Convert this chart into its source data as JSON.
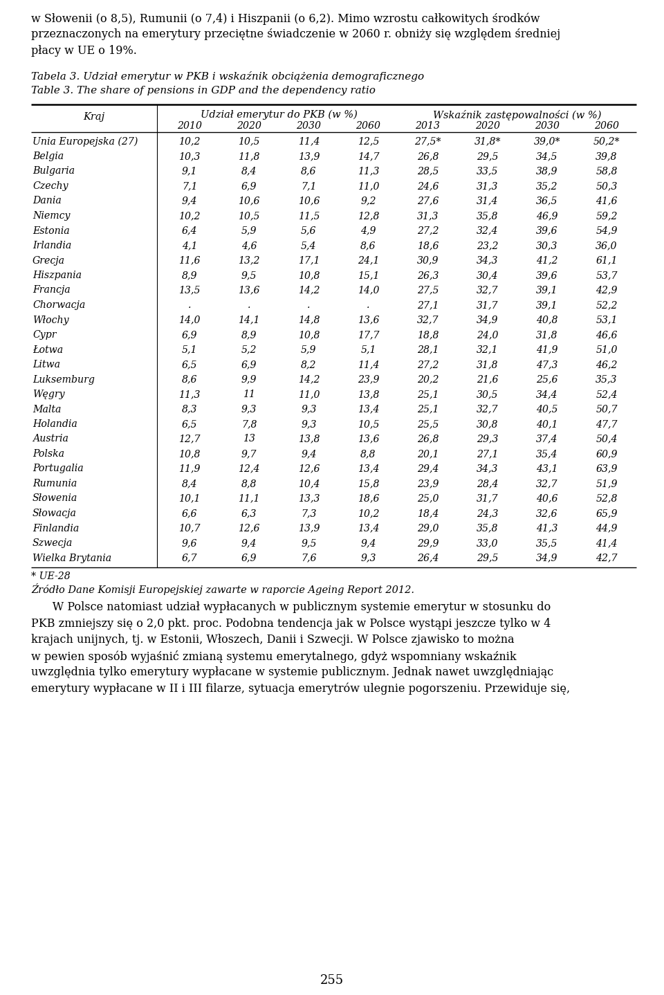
{
  "intro_text_lines": [
    "w Słowenii (o 8,5), Rumunii (o 7,4) i Hiszpanii (o 6,2). Mimo wzrostu całkowitych środków",
    "przeznaczonych na emerytury przeciętne świadczenie w 2060 r. obniży się względem średniej",
    "płacy w UE o 19%."
  ],
  "tabela_label": "Tabela 3. Udział emerytur w PKB i wskaźnik obciążenia demograficznego",
  "table_label": "Table 3. The share of pensions in GDP and the dependency ratio",
  "col_header_kraj": "Kraj",
  "col_group1": "Udział emerytur do PKB (w %)",
  "col_group2": "Wskaźnik zastępowalności (w %)",
  "col_years1": [
    "2010",
    "2020",
    "2030",
    "2060"
  ],
  "col_years2": [
    "2013",
    "2020",
    "2030",
    "2060"
  ],
  "rows": [
    [
      "Unia Europejska (27)",
      "10,2",
      "10,5",
      "11,4",
      "12,5",
      "27,5*",
      "31,8*",
      "39,0*",
      "50,2*"
    ],
    [
      "Belgia",
      "10,3",
      "11,8",
      "13,9",
      "14,7",
      "26,8",
      "29,5",
      "34,5",
      "39,8"
    ],
    [
      "Bulgaria",
      "9,1",
      "8,4",
      "8,6",
      "11,3",
      "28,5",
      "33,5",
      "38,9",
      "58,8"
    ],
    [
      "Czechy",
      "7,1",
      "6,9",
      "7,1",
      "11,0",
      "24,6",
      "31,3",
      "35,2",
      "50,3"
    ],
    [
      "Dania",
      "9,4",
      "10,6",
      "10,6",
      "9,2",
      "27,6",
      "31,4",
      "36,5",
      "41,6"
    ],
    [
      "Niemcy",
      "10,2",
      "10,5",
      "11,5",
      "12,8",
      "31,3",
      "35,8",
      "46,9",
      "59,2"
    ],
    [
      "Estonia",
      "6,4",
      "5,9",
      "5,6",
      "4,9",
      "27,2",
      "32,4",
      "39,6",
      "54,9"
    ],
    [
      "Irlandia",
      "4,1",
      "4,6",
      "5,4",
      "8,6",
      "18,6",
      "23,2",
      "30,3",
      "36,0"
    ],
    [
      "Grecja",
      "11,6",
      "13,2",
      "17,1",
      "24,1",
      "30,9",
      "34,3",
      "41,2",
      "61,1"
    ],
    [
      "Hiszpania",
      "8,9",
      "9,5",
      "10,8",
      "15,1",
      "26,3",
      "30,4",
      "39,6",
      "53,7"
    ],
    [
      "Francja",
      "13,5",
      "13,6",
      "14,2",
      "14,0",
      "27,5",
      "32,7",
      "39,1",
      "42,9"
    ],
    [
      "Chorwacja",
      ".",
      ".",
      ".",
      ".",
      "27,1",
      "31,7",
      "39,1",
      "52,2"
    ],
    [
      "Włochy",
      "14,0",
      "14,1",
      "14,8",
      "13,6",
      "32,7",
      "34,9",
      "40,8",
      "53,1"
    ],
    [
      "Cypr",
      "6,9",
      "8,9",
      "10,8",
      "17,7",
      "18,8",
      "24,0",
      "31,8",
      "46,6"
    ],
    [
      "Łotwa",
      "5,1",
      "5,2",
      "5,9",
      "5,1",
      "28,1",
      "32,1",
      "41,9",
      "51,0"
    ],
    [
      "Litwa",
      "6,5",
      "6,9",
      "8,2",
      "11,4",
      "27,2",
      "31,8",
      "47,3",
      "46,2"
    ],
    [
      "Luksemburg",
      "8,6",
      "9,9",
      "14,2",
      "23,9",
      "20,2",
      "21,6",
      "25,6",
      "35,3"
    ],
    [
      "Węgry",
      "11,3",
      "11",
      "11,0",
      "13,8",
      "25,1",
      "30,5",
      "34,4",
      "52,4"
    ],
    [
      "Malta",
      "8,3",
      "9,3",
      "9,3",
      "13,4",
      "25,1",
      "32,7",
      "40,5",
      "50,7"
    ],
    [
      "Holandia",
      "6,5",
      "7,8",
      "9,3",
      "10,5",
      "25,5",
      "30,8",
      "40,1",
      "47,7"
    ],
    [
      "Austria",
      "12,7",
      "13",
      "13,8",
      "13,6",
      "26,8",
      "29,3",
      "37,4",
      "50,4"
    ],
    [
      "Polska",
      "10,8",
      "9,7",
      "9,4",
      "8,8",
      "20,1",
      "27,1",
      "35,4",
      "60,9"
    ],
    [
      "Portugalia",
      "11,9",
      "12,4",
      "12,6",
      "13,4",
      "29,4",
      "34,3",
      "43,1",
      "63,9"
    ],
    [
      "Rumunia",
      "8,4",
      "8,8",
      "10,4",
      "15,8",
      "23,9",
      "28,4",
      "32,7",
      "51,9"
    ],
    [
      "Słowenia",
      "10,1",
      "11,1",
      "13,3",
      "18,6",
      "25,0",
      "31,7",
      "40,6",
      "52,8"
    ],
    [
      "Słowacja",
      "6,6",
      "6,3",
      "7,3",
      "10,2",
      "18,4",
      "24,3",
      "32,6",
      "65,9"
    ],
    [
      "Finlandia",
      "10,7",
      "12,6",
      "13,9",
      "13,4",
      "29,0",
      "35,8",
      "41,3",
      "44,9"
    ],
    [
      "Szwecja",
      "9,6",
      "9,4",
      "9,5",
      "9,4",
      "29,9",
      "33,0",
      "35,5",
      "41,4"
    ],
    [
      "Wielka Brytania",
      "6,7",
      "6,9",
      "7,6",
      "9,3",
      "26,4",
      "29,5",
      "34,9",
      "42,7"
    ]
  ],
  "footnote": "* UE-28",
  "source": "Źródło Dane Komisji Europejskiej zawarte w raporcie Ageing Report 2012.",
  "body_text_lines": [
    "      W Polsce natomiast udział wypłacanych w publicznym systemie emerytur w stosunku do",
    "PKB zmniejszy się o 2,0 pkt. proc. Podobna tendencja jak w Polsce wystąpi jeszcze tylko w 4",
    "krajach unijnych, tj. w Estonii, Włoszech, Danii i Szwecji. W Polsce zjawisko to można",
    "w pewien sposób wyjaśnić zmianą systemu emerytalnego, gdyż wspomniany wskaźnik",
    "uwzględnia tylko emerytury wypłacane w systemie publicznym. Jednak nawet uwzględniając",
    "emerytury wypłacane w II i III filarze, sytuacja emerytrów ulegnie pogorszeniu. Przewiduje się,"
  ],
  "page_number": "255",
  "bg_color": "#ffffff",
  "text_color": "#000000"
}
